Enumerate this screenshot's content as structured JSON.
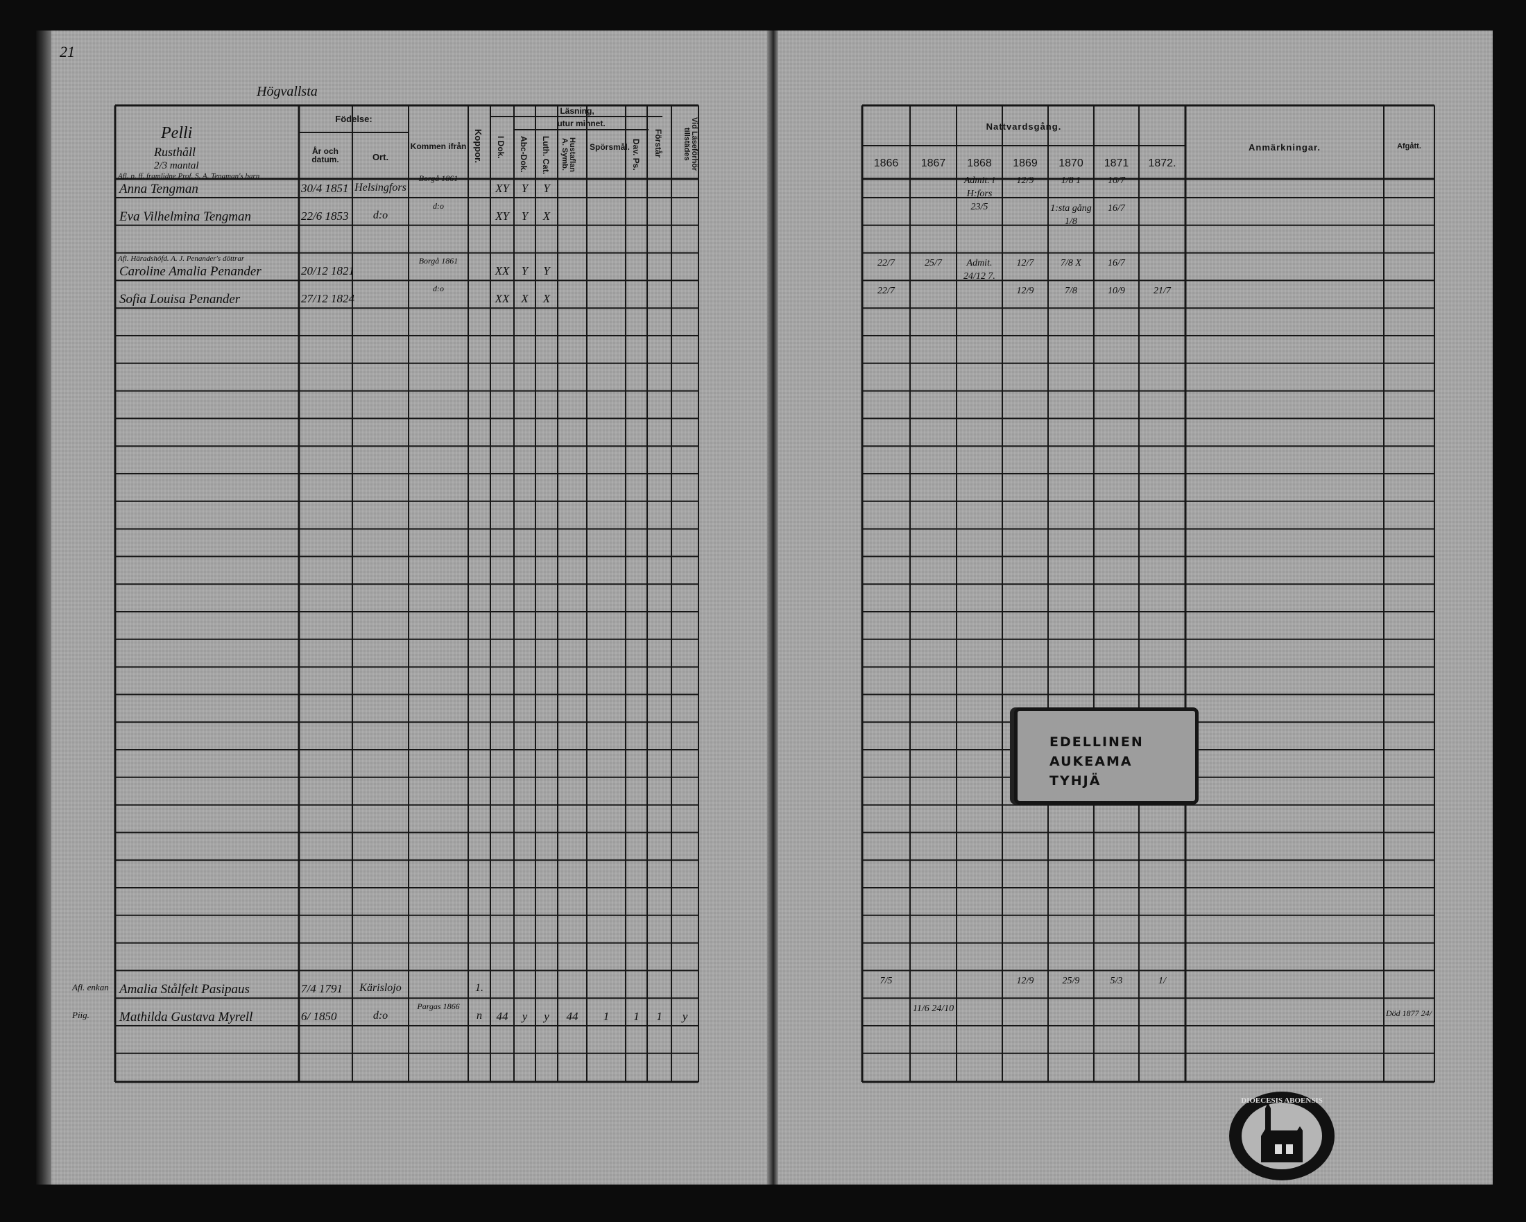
{
  "page_number": "21",
  "farm_title": "Högvallsta",
  "left_header": {
    "name_col": [
      "Pelli",
      "Rusthåll",
      "2/3 mantal"
    ],
    "birth": "Födelse:",
    "birth_date": "År och datum.",
    "birth_place": "Ort.",
    "came_from": "Kommen ifrån",
    "pox": "Koppor.",
    "reading": "Läsning,",
    "by_heart": "utur minnet.",
    "i_dok": "I Dok.",
    "abc_dok": "Abc-Dok.",
    "luth_cat": "Luth. Cat.",
    "hustaflan": "Hustaflan A. Symb.",
    "sporsmal": "Spörsmål.",
    "dav_ps": "Dav. Ps.",
    "forstar": "Förstår",
    "attended": "Vid Läseförhör tillstädes"
  },
  "right_header": {
    "communion": "Nattvardsgång.",
    "years": [
      "1866",
      "1867",
      "1868",
      "1869",
      "1870",
      "1871",
      "1872."
    ],
    "remarks": "Anmärkningar.",
    "departed": "Afgått."
  },
  "rows": [
    {
      "margin": "",
      "note": "Afl. p. ff. framlidne Prof. S. A. Tengman's barn",
      "name": "Anna Tengman",
      "date": "30/4 1851",
      "place": "Helsingfors",
      "from": "Borgå 1861",
      "pox": "",
      "reading": [
        "XY",
        "Y",
        "Y",
        "",
        "",
        "",
        "",
        ""
      ],
      "communion": [
        "",
        "",
        "Admit. i H:fors 23/5",
        "12/9",
        "1/8  1",
        "16/7",
        ""
      ],
      "departed": ""
    },
    {
      "margin": "",
      "note": "",
      "name": "Eva Vilhelmina Tengman",
      "date": "22/6 1853",
      "place": "d:o",
      "from": "d:o",
      "pox": "",
      "reading": [
        "XY",
        "Y",
        "X",
        "",
        "",
        "",
        "",
        ""
      ],
      "communion": [
        "",
        "",
        "",
        "",
        "1:sta gång 1/8",
        "16/7",
        ""
      ],
      "departed": ""
    },
    {
      "margin": "",
      "note": "Afl. Häradshöfd. A. J. Penander's döttrar",
      "name": "Caroline Amalia Penander",
      "date": "20/12 1821",
      "place": "",
      "from": "Borgå 1861",
      "pox": "",
      "reading": [
        "XX",
        "Y",
        "Y",
        "",
        "",
        "",
        "",
        ""
      ],
      "communion": [
        "22/7",
        "25/7",
        "Admit. 24/12 7.",
        "12/7",
        "7/8  X",
        "16/7",
        ""
      ],
      "departed": ""
    },
    {
      "margin": "",
      "note": "",
      "name": "Sofia Louisa Penander",
      "date": "27/12 1824",
      "place": "",
      "from": "d:o",
      "pox": "",
      "reading": [
        "XX",
        "X",
        "X",
        "",
        "",
        "",
        "",
        ""
      ],
      "communion": [
        "22/7",
        "",
        "",
        "12/9",
        "7/8",
        "10/9",
        "21/7"
      ],
      "departed": ""
    },
    {
      "margin": "Afl. enkan",
      "note": "",
      "name": "Amalia Stålfelt Pasipaus",
      "date": "7/4 1791",
      "place": "Kärislojo",
      "from": "",
      "pox": "1.",
      "reading": [
        "",
        "",
        "",
        "",
        "",
        "",
        "",
        ""
      ],
      "communion": [
        "7/5",
        "",
        "",
        "12/9",
        "25/9",
        "5/3",
        "1/"
      ],
      "departed": ""
    },
    {
      "margin": "Piig.",
      "note": "",
      "name": "Mathilda Gustava Myrell",
      "date": "6/ 1850",
      "place": "d:o",
      "from": "Pargas 1866",
      "pox": "n",
      "reading": [
        "44",
        "y",
        "y",
        "44",
        "1",
        "1",
        "1",
        "y"
      ],
      "communion": [
        "",
        "11/6 24/10",
        "",
        "",
        "",
        "",
        ""
      ],
      "departed": "Död 1877 24/"
    }
  ],
  "pasted_label": [
    "EDELLINEN",
    "AUKEAMA",
    "TYHJÄ"
  ],
  "seal_text": "DIOECESIS ABOENSIS",
  "colors": {
    "paper": "#a7a7a7",
    "ink": "#111111",
    "background": "#0c0c0c"
  }
}
